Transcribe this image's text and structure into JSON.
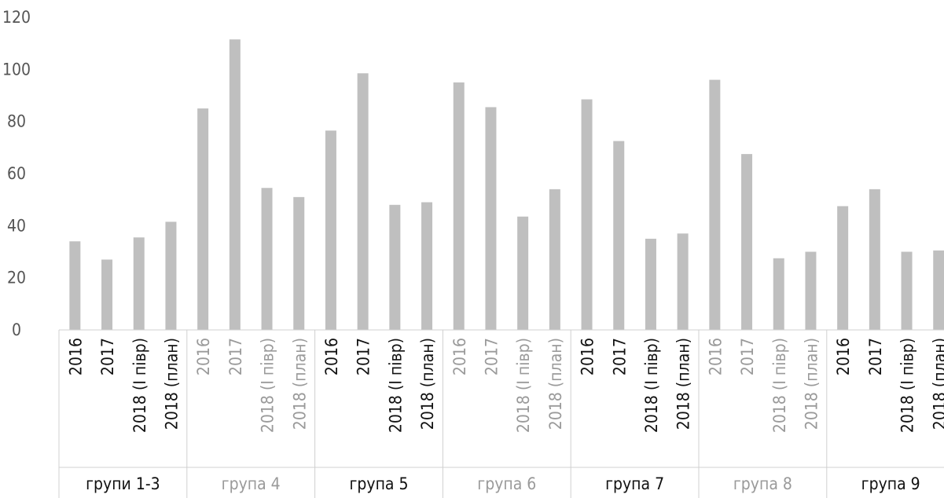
{
  "chart_data": {
    "type": "bar",
    "title": "",
    "xlabel": "",
    "ylabel": "",
    "ylim": [
      0,
      120
    ],
    "yticks": [
      0,
      20,
      40,
      60,
      80,
      100,
      120
    ],
    "grid": false,
    "legend": "none",
    "bar_color": "#bfbfbf",
    "period_labels": [
      "2016",
      "2017",
      "2018 (I півр)",
      "2018 (план)"
    ],
    "groups": [
      {
        "label": "групи 1-3",
        "values": [
          34,
          27,
          35.5,
          41.5
        ],
        "style": "dark"
      },
      {
        "label": "група 4",
        "values": [
          85,
          111.5,
          54.5,
          51
        ],
        "style": "light"
      },
      {
        "label": "група 5",
        "values": [
          76.5,
          98.5,
          48,
          49
        ],
        "style": "dark"
      },
      {
        "label": "група 6",
        "values": [
          95,
          85.5,
          43.5,
          54
        ],
        "style": "light"
      },
      {
        "label": "група 7",
        "values": [
          88.5,
          72.5,
          35,
          37
        ],
        "style": "dark"
      },
      {
        "label": "група 8",
        "values": [
          96,
          67.5,
          27.5,
          30
        ],
        "style": "light"
      },
      {
        "label": "група 9",
        "values": [
          47.5,
          54,
          30,
          30.5
        ],
        "style": "dark"
      }
    ]
  }
}
